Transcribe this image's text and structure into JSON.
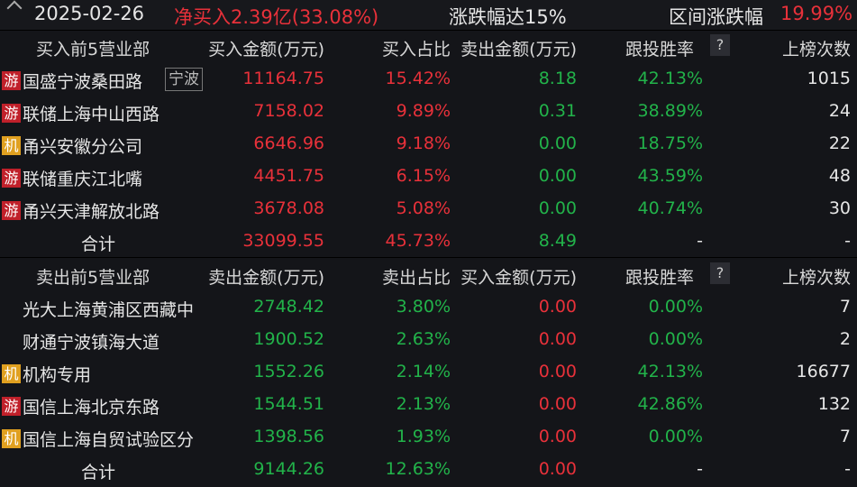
{
  "header": {
    "date": "2025-02-26",
    "net_buy": "净买入2.39亿(33.08%)",
    "reason": "涨跌幅达15%",
    "range_label": "区间涨跌幅",
    "range_value": "19.99%"
  },
  "colors": {
    "red": "#e8313a",
    "green": "#22b34a",
    "background": "#141519"
  },
  "buy": {
    "headers": [
      "买入前5营业部",
      "买入金额(万元)",
      "买入占比",
      "卖出金额(万元)",
      "跟投胜率",
      "上榜次数"
    ],
    "help": "?",
    "rows": [
      {
        "badge": "游",
        "name": "国盛宁波桑田路",
        "tag": "宁波",
        "a": "11164.75",
        "b": "15.42%",
        "c": "8.18",
        "d": "42.13%",
        "e": "1015"
      },
      {
        "badge": "游",
        "name": "联储上海中山西路",
        "a": "7158.02",
        "b": "9.89%",
        "c": "0.31",
        "d": "38.89%",
        "e": "24"
      },
      {
        "badge": "机",
        "name": "甬兴安徽分公司",
        "a": "6646.96",
        "b": "9.18%",
        "c": "0.00",
        "d": "18.75%",
        "e": "22"
      },
      {
        "badge": "游",
        "name": "联储重庆江北嘴",
        "a": "4451.75",
        "b": "6.15%",
        "c": "0.00",
        "d": "43.59%",
        "e": "48"
      },
      {
        "badge": "游",
        "name": "甬兴天津解放北路",
        "a": "3678.08",
        "b": "5.08%",
        "c": "0.00",
        "d": "40.74%",
        "e": "30"
      }
    ],
    "total": {
      "label": "合计",
      "a": "33099.55",
      "b": "45.73%",
      "c": "8.49",
      "d": "-",
      "e": "-"
    }
  },
  "sell": {
    "headers": [
      "卖出前5营业部",
      "卖出金额(万元)",
      "卖出占比",
      "买入金额(万元)",
      "跟投胜率",
      "上榜次数"
    ],
    "help": "?",
    "rows": [
      {
        "badge": "",
        "name": "光大上海黄浦区西藏中",
        "a": "2748.42",
        "b": "3.80%",
        "c": "0.00",
        "d": "0.00%",
        "e": "7"
      },
      {
        "badge": "",
        "name": "财通宁波镇海大道",
        "a": "1900.52",
        "b": "2.63%",
        "c": "0.00",
        "d": "0.00%",
        "e": "2"
      },
      {
        "badge": "机",
        "name": "机构专用",
        "a": "1552.26",
        "b": "2.14%",
        "c": "0.00",
        "d": "42.13%",
        "e": "16677"
      },
      {
        "badge": "游",
        "name": "国信上海北京东路",
        "a": "1544.51",
        "b": "2.13%",
        "c": "0.00",
        "d": "42.86%",
        "e": "132"
      },
      {
        "badge": "机",
        "name": "国信上海自贸试验区分",
        "a": "1398.56",
        "b": "1.93%",
        "c": "0.00",
        "d": "0.00%",
        "e": "7"
      }
    ],
    "total": {
      "label": "合计",
      "a": "9144.26",
      "b": "12.63%",
      "c": "0.00",
      "d": "-",
      "e": "-"
    }
  }
}
